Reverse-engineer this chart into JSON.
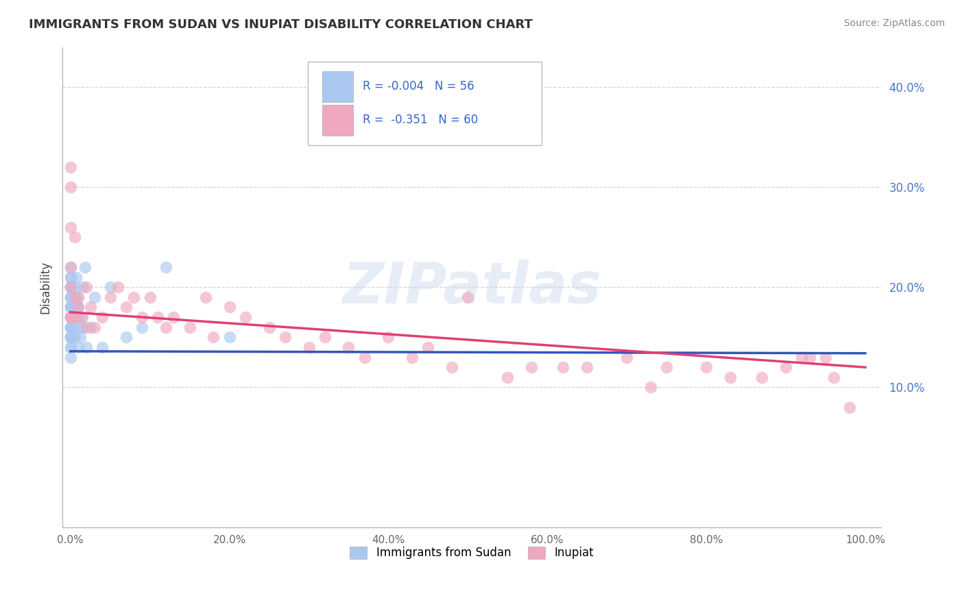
{
  "title": "IMMIGRANTS FROM SUDAN VS INUPIAT DISABILITY CORRELATION CHART",
  "source": "Source: ZipAtlas.com",
  "ylabel": "Disability",
  "watermark": "ZIPatlas",
  "legend_labels": [
    "Immigrants from Sudan",
    "Inupiat"
  ],
  "sudan_R": "-0.004",
  "sudan_N": "56",
  "inupiat_R": "-0.351",
  "inupiat_N": "60",
  "sudan_color": "#aac8f0",
  "inupiat_color": "#f0a8c0",
  "sudan_line_color": "#3355bb",
  "inupiat_line_color": "#e04070",
  "background_color": "#ffffff",
  "grid_color": "#cccccc",
  "xlim": [
    -0.01,
    1.02
  ],
  "ylim": [
    -0.04,
    0.44
  ],
  "y_ticks": [
    0.1,
    0.2,
    0.3,
    0.4
  ],
  "x_ticks": [
    0.0,
    0.2,
    0.4,
    0.6,
    0.8,
    1.0
  ],
  "sudan_x": [
    0.0,
    0.0,
    0.0,
    0.0,
    0.0,
    0.0,
    0.0,
    0.0,
    0.0,
    0.0,
    0.0,
    0.0,
    0.0,
    0.0,
    0.0,
    0.0,
    0.0,
    0.0,
    0.0,
    0.0,
    0.0,
    0.0,
    0.0,
    0.0,
    0.0,
    0.0,
    0.0,
    0.0,
    0.003,
    0.003,
    0.004,
    0.004,
    0.005,
    0.005,
    0.006,
    0.006,
    0.007,
    0.008,
    0.009,
    0.01,
    0.01,
    0.01,
    0.012,
    0.013,
    0.015,
    0.016,
    0.018,
    0.02,
    0.025,
    0.03,
    0.04,
    0.05,
    0.07,
    0.09,
    0.12,
    0.2
  ],
  "sudan_y": [
    0.13,
    0.14,
    0.14,
    0.15,
    0.15,
    0.15,
    0.15,
    0.16,
    0.16,
    0.16,
    0.16,
    0.17,
    0.17,
    0.17,
    0.17,
    0.18,
    0.18,
    0.18,
    0.18,
    0.19,
    0.19,
    0.19,
    0.2,
    0.2,
    0.2,
    0.21,
    0.21,
    0.22,
    0.15,
    0.16,
    0.17,
    0.18,
    0.15,
    0.17,
    0.19,
    0.2,
    0.21,
    0.18,
    0.19,
    0.14,
    0.16,
    0.18,
    0.15,
    0.17,
    0.16,
    0.2,
    0.22,
    0.14,
    0.16,
    0.19,
    0.14,
    0.2,
    0.15,
    0.16,
    0.22,
    0.15
  ],
  "inupiat_x": [
    0.0,
    0.0,
    0.0,
    0.0,
    0.0,
    0.0,
    0.0,
    0.003,
    0.005,
    0.005,
    0.008,
    0.01,
    0.01,
    0.015,
    0.02,
    0.02,
    0.025,
    0.03,
    0.04,
    0.05,
    0.06,
    0.07,
    0.08,
    0.09,
    0.1,
    0.11,
    0.12,
    0.13,
    0.15,
    0.17,
    0.18,
    0.2,
    0.22,
    0.25,
    0.27,
    0.3,
    0.32,
    0.35,
    0.37,
    0.4,
    0.43,
    0.45,
    0.48,
    0.5,
    0.55,
    0.58,
    0.62,
    0.65,
    0.7,
    0.73,
    0.75,
    0.8,
    0.83,
    0.87,
    0.9,
    0.92,
    0.93,
    0.95,
    0.96,
    0.98
  ],
  "inupiat_y": [
    0.17,
    0.2,
    0.22,
    0.26,
    0.3,
    0.32,
    0.17,
    0.17,
    0.25,
    0.19,
    0.17,
    0.19,
    0.18,
    0.17,
    0.2,
    0.16,
    0.18,
    0.16,
    0.17,
    0.19,
    0.2,
    0.18,
    0.19,
    0.17,
    0.19,
    0.17,
    0.16,
    0.17,
    0.16,
    0.19,
    0.15,
    0.18,
    0.17,
    0.16,
    0.15,
    0.14,
    0.15,
    0.14,
    0.13,
    0.15,
    0.13,
    0.14,
    0.12,
    0.19,
    0.11,
    0.12,
    0.12,
    0.12,
    0.13,
    0.1,
    0.12,
    0.12,
    0.11,
    0.11,
    0.12,
    0.13,
    0.13,
    0.13,
    0.11,
    0.08
  ]
}
